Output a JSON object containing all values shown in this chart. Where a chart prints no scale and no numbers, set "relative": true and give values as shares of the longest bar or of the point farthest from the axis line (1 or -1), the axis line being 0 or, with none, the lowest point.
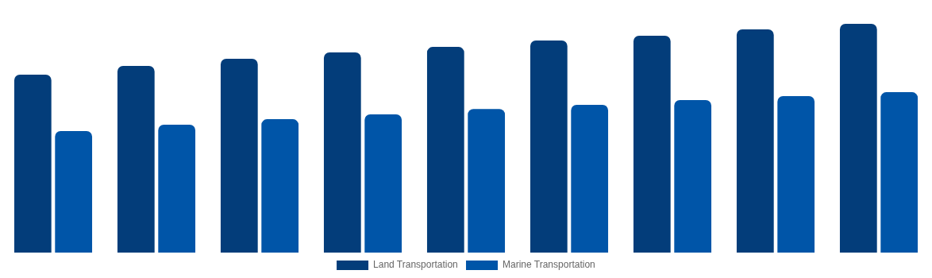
{
  "chart_data": {
    "type": "bar",
    "relative": true,
    "legend": "bottom",
    "categories": [
      null,
      null,
      null,
      null,
      null,
      null,
      null,
      null,
      null
    ],
    "series": [
      {
        "name": "Land Transportation",
        "color": "#033d7a",
        "values": [
          0.778,
          0.816,
          0.847,
          0.875,
          0.899,
          0.927,
          0.948,
          0.976,
          1
        ]
      },
      {
        "name": "Marine Transportation",
        "color": "#0055a8",
        "values": [
          0.531,
          0.559,
          0.583,
          0.604,
          0.628,
          0.646,
          0.667,
          0.684,
          0.701
        ]
      }
    ]
  }
}
